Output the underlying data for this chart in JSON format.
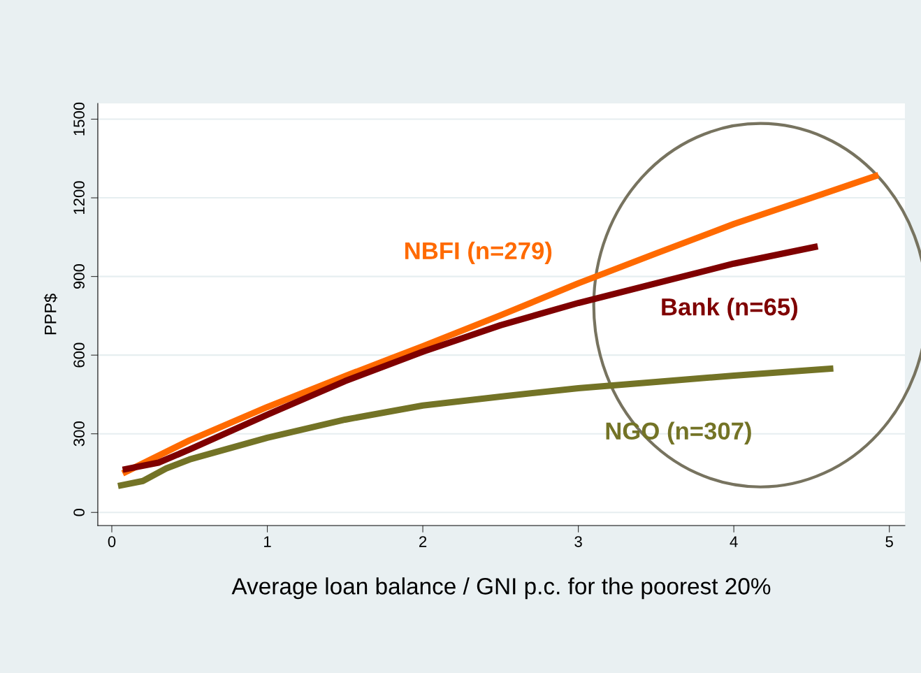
{
  "chart_data": {
    "type": "line",
    "xlabel": "Average loan balance / GNI p.c. for the poorest 20%",
    "ylabel": "PPP$",
    "xlim": [
      -0.09,
      5.1
    ],
    "xticks": [
      0,
      1,
      2,
      3,
      4,
      5
    ],
    "ylim": [
      -50,
      1560
    ],
    "yticks": [
      0,
      300,
      600,
      900,
      1200,
      1500
    ],
    "grid": "y",
    "series": [
      {
        "name": "NBFI (n=279)",
        "color": "#ff6a00",
        "x": [
          0.07,
          0.5,
          1,
          1.5,
          2,
          2.5,
          3,
          3.5,
          4,
          4.5,
          4.93
        ],
        "values": [
          149,
          275,
          402,
          520,
          634,
          752,
          874,
          988,
          1100,
          1200,
          1287
        ]
      },
      {
        "name": "Bank (n=65)",
        "color": "#7f0000",
        "x": [
          0.07,
          0.3,
          0.5,
          1,
          1.5,
          2,
          2.5,
          3,
          3.5,
          4,
          4.54
        ],
        "values": [
          163,
          190,
          240,
          373,
          501,
          613,
          714,
          799,
          874,
          949,
          1015
        ]
      },
      {
        "name": "NGO (n=307)",
        "color": "#737326",
        "x": [
          0.04,
          0.2,
          0.35,
          0.5,
          1,
          1.5,
          2,
          2.5,
          3,
          3.5,
          4,
          4.64
        ],
        "values": [
          101,
          120,
          168,
          202,
          285,
          354,
          408,
          442,
          474,
          498,
          522,
          549
        ]
      }
    ]
  }
}
